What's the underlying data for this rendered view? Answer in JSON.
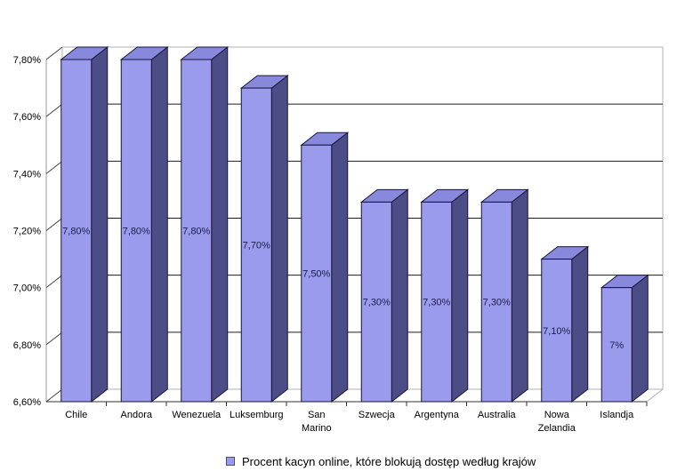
{
  "chart_data": {
    "type": "bar",
    "style": "3d-column",
    "categories": [
      "Chile",
      "Andora",
      "Wenezuela",
      "Luksemburg",
      "San Marino",
      "Szwecja",
      "Argentyna",
      "Australia",
      "Nowa Zelandia",
      "Islandja"
    ],
    "values": [
      7.8,
      7.8,
      7.8,
      7.7,
      7.5,
      7.3,
      7.3,
      7.3,
      7.1,
      7.0
    ],
    "value_labels": [
      "7,80%",
      "7,80%",
      "7,80%",
      "7,70%",
      "7,50%",
      "7,30%",
      "7,30%",
      "7,30%",
      "7,10%",
      "7%"
    ],
    "y_ticks": [
      {
        "value": 7.8,
        "label": "7,80%"
      },
      {
        "value": 7.6,
        "label": "7,60%"
      },
      {
        "value": 7.4,
        "label": "7,40%"
      },
      {
        "value": 7.2,
        "label": "7,20%"
      },
      {
        "value": 7.0,
        "label": "7,00%"
      },
      {
        "value": 6.8,
        "label": "6,80%"
      },
      {
        "value": 6.6,
        "label": "6,60%"
      }
    ],
    "ylim": [
      6.6,
      7.8
    ],
    "grid": true,
    "legend": "Procent kacyn online, które blokują dostęp według krajów",
    "legend_position": "bottom",
    "colors": {
      "bar_front": "#9b9bee",
      "bar_side": "#4c4c87",
      "bar_top": "#8888dd",
      "bar_outline": "#16163a",
      "gridline": "#1f1f1f",
      "wall_edge": "#b0b0b0",
      "axis_front": "#999999",
      "axis_bottom": "#333333",
      "tick_diag": "#444444",
      "value_label": "#1c1c46",
      "axis_text": "#000000"
    }
  }
}
